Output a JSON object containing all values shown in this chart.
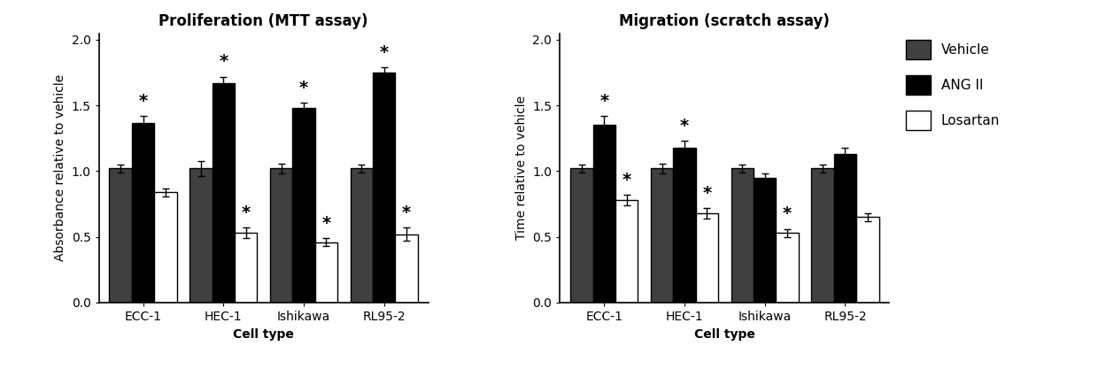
{
  "chart1": {
    "title": "Proliferation (MTT assay)",
    "ylabel": "Absorbance relative to vehicle",
    "xlabel": "Cell type",
    "categories": [
      "ECC-1",
      "HEC-1",
      "Ishikawa",
      "RL95-2"
    ],
    "vehicle": [
      1.02,
      1.02,
      1.02,
      1.02
    ],
    "vehicle_err": [
      0.03,
      0.06,
      0.04,
      0.03
    ],
    "angii": [
      1.37,
      1.67,
      1.48,
      1.75
    ],
    "angii_err": [
      0.05,
      0.05,
      0.04,
      0.04
    ],
    "losartan": [
      0.84,
      0.53,
      0.46,
      0.52
    ],
    "losartan_err": [
      0.03,
      0.04,
      0.03,
      0.05
    ],
    "angii_star": [
      true,
      true,
      true,
      true
    ],
    "losartan_star": [
      false,
      true,
      true,
      true
    ]
  },
  "chart2": {
    "title": "Migration (scratch assay)",
    "ylabel": "Time relative to vehicle",
    "xlabel": "Cell type",
    "categories": [
      "ECC-1",
      "HEC-1",
      "Ishikawa",
      "RL95-2"
    ],
    "vehicle": [
      1.02,
      1.02,
      1.02,
      1.02
    ],
    "vehicle_err": [
      0.03,
      0.04,
      0.03,
      0.03
    ],
    "angii": [
      1.35,
      1.18,
      0.95,
      1.13
    ],
    "angii_err": [
      0.07,
      0.05,
      0.03,
      0.05
    ],
    "losartan": [
      0.78,
      0.68,
      0.53,
      0.65
    ],
    "losartan_err": [
      0.04,
      0.04,
      0.03,
      0.03
    ],
    "angii_star": [
      true,
      true,
      false,
      false
    ],
    "losartan_star": [
      true,
      true,
      true,
      false
    ]
  },
  "legend_labels": [
    "Vehicle",
    "ANG II",
    "Losartan"
  ],
  "vehicle_color": "#404040",
  "angii_color": "#000000",
  "losartan_color": "#ffffff",
  "bar_edge_color": "#000000",
  "ylim": [
    0.0,
    2.05
  ],
  "yticks": [
    0.0,
    0.5,
    1.0,
    1.5,
    2.0
  ],
  "background_color": "#ffffff",
  "title_fontsize": 12,
  "label_fontsize": 10,
  "tick_fontsize": 10,
  "star_fontsize": 14,
  "legend_fontsize": 11,
  "bar_width": 0.28,
  "cap_size": 3
}
